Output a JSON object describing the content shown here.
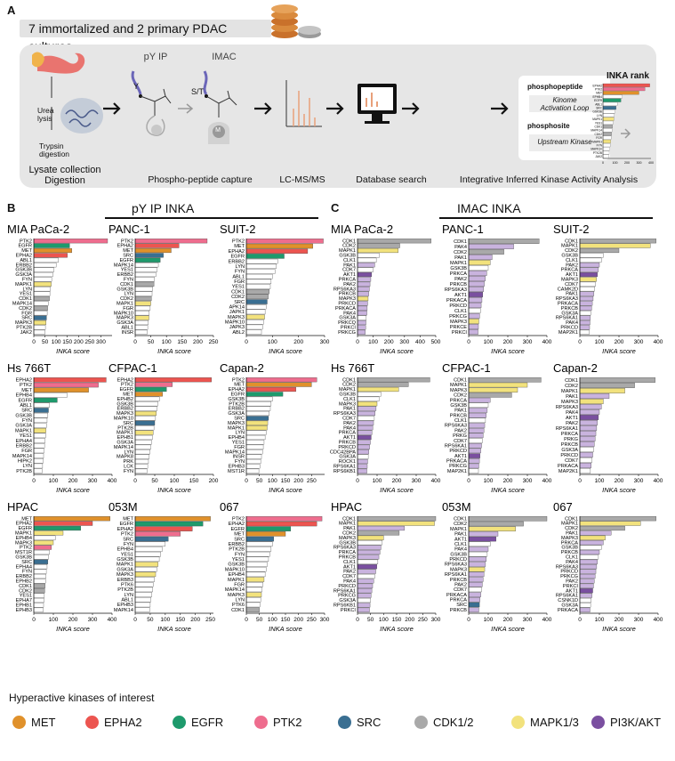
{
  "panel_letters": {
    "a": "A",
    "b": "B",
    "c": "C"
  },
  "workflow": {
    "banner": "7 immortalized and 2 primary PDAC cultures",
    "steps": [
      {
        "label": "Lysate collection\nDigestion"
      },
      {
        "label": "Phospho-peptide capture"
      },
      {
        "label": "LC-MS/MS"
      },
      {
        "label": "Database search"
      },
      {
        "label": "Integrative Inferred Kinase Activity Analysis"
      }
    ],
    "lysis_notes": {
      "urea": "Urea\nlysis",
      "trypsin": "Trypsin\ndigestion"
    },
    "capture": {
      "py_ip": "pY IP",
      "imac": "IMAC",
      "y": "Y",
      "st": "S/T",
      "m": "M"
    },
    "phospho_box": {
      "phosphopeptide": "phosphopeptide",
      "phosphopeptide_sub": "Kinome\nActivation Loop",
      "phosphosite": "phosphosite",
      "phosphosite_sub": "Upstream Kinase"
    },
    "inka_rank": {
      "title": "INKA rank",
      "kinases": [
        "EPHA2",
        "PTK2",
        "MET",
        "EPHB4",
        "EGFR",
        "ABL1",
        "SRC",
        "GSK3B",
        "LYN",
        "MAPK1",
        "YES1",
        "CDK1",
        "MAPK14",
        "CDK2",
        "FGR",
        "MAPK3",
        "FYN",
        "MAPK10",
        "PTK2B",
        "JAK2"
      ],
      "ticks": [
        "0",
        "100",
        "200",
        "300",
        "400"
      ]
    }
  },
  "groups": {
    "py_title": "pY IP INKA",
    "imac_title": "IMAC INKA"
  },
  "axis_label": "INKA score",
  "legend": {
    "title": "Hyperactive kinases of interest",
    "items": [
      {
        "name": "MET",
        "color": "#e0912b"
      },
      {
        "name": "EPHA2",
        "color": "#ec5550"
      },
      {
        "name": "EGFR",
        "color": "#1e9a6c"
      },
      {
        "name": "PTK2",
        "color": "#ee6d8e"
      },
      {
        "name": "SRC",
        "color": "#3a6f92"
      },
      {
        "name": "CDK1/2",
        "color": "#a9a9a9"
      },
      {
        "name": "MAPK1/3",
        "color": "#f2e27d"
      },
      {
        "name": "PI3K/AKT",
        "color": "#7a4fa0"
      }
    ]
  },
  "colors": {
    "MET": "#e0912b",
    "EPHA2": "#ec5550",
    "EGFR": "#1e9a6c",
    "PTK2": "#ee6d8e",
    "SRC": "#3a6f92",
    "CDK": "#a9a9a9",
    "MAPK": "#f2e27d",
    "PI3K": "#7a4fa0",
    "PI3K_light": "#c9b3de",
    "other": "#ffffff"
  },
  "chart_data": [
    {
      "type": "bar",
      "title": "MIA PaCa-2",
      "xlabel": "INKA score",
      "xlim": [
        0,
        350
      ],
      "ticks": [
        0,
        50,
        100,
        150,
        200,
        250,
        300
      ],
      "categories": [
        "PTK2",
        "EGFR",
        "MET",
        "EPHA2",
        "ABL1",
        "ERBB2",
        "GSK3B",
        "GSK3A",
        "FYN",
        "MAPK1",
        "LYN",
        "YES1",
        "CDK1",
        "MAPK14",
        "CDK2",
        "FGR",
        "SRC",
        "MAPK3",
        "PTK2B",
        "JAK2"
      ],
      "values": [
        330,
        160,
        170,
        150,
        110,
        100,
        90,
        85,
        80,
        78,
        74,
        72,
        70,
        65,
        62,
        60,
        57,
        55,
        52,
        50
      ]
    },
    {
      "type": "bar",
      "title": "PANC-1",
      "xlabel": "INKA score",
      "xlim": [
        0,
        250
      ],
      "ticks": [
        0,
        50,
        100,
        150,
        200,
        250
      ],
      "categories": [
        "PTK2",
        "EPHA2",
        "MET",
        "SRC",
        "EGFR",
        "MAPK14",
        "YES1",
        "ERBB2",
        "FYN",
        "CDK1",
        "GSK3B",
        "LYN",
        "CDK2",
        "MAPK1",
        "FGR",
        "MAPK10",
        "MAPK3",
        "GSK3A",
        "ABL1",
        "INSR"
      ],
      "values": [
        230,
        140,
        115,
        90,
        80,
        74,
        70,
        66,
        62,
        60,
        56,
        54,
        52,
        50,
        48,
        45,
        44,
        42,
        40,
        38
      ]
    },
    {
      "type": "bar",
      "title": "SUIT-2",
      "xlabel": "INKA score",
      "xlim": [
        0,
        300
      ],
      "ticks": [
        0,
        100,
        200,
        300
      ],
      "categories": [
        "PTK2",
        "MET",
        "EPHA2",
        "EGFR",
        "ERBB2",
        "LYN",
        "FYN",
        "ABL1",
        "FGR",
        "YES1",
        "CDK1",
        "CDK2",
        "SRC",
        "APK14",
        "JAPK1",
        "MAPK3",
        "MAPK10",
        "JAPK3",
        "ABL2"
      ],
      "values": [
        295,
        255,
        235,
        145,
        120,
        115,
        110,
        100,
        95,
        92,
        88,
        84,
        80,
        76,
        72,
        70,
        66,
        62,
        58
      ]
    },
    {
      "type": "bar",
      "title": "Hs 766T",
      "xlabel": "INKA score",
      "xlim": [
        0,
        400
      ],
      "ticks": [
        0,
        100,
        200,
        300,
        400
      ],
      "categories": [
        "EPHA2",
        "PTK2",
        "MET",
        "EPHB4",
        "EGFR",
        "ABL1",
        "SRC",
        "GSK3B",
        "FYN",
        "GSK3A",
        "MAPK1",
        "YES1",
        "EPHA4",
        "ERBB2",
        "FGR",
        "MAPK14",
        "HIPK2",
        "LYN",
        "PTK2B"
      ],
      "values": [
        370,
        330,
        280,
        170,
        120,
        80,
        75,
        72,
        68,
        65,
        62,
        60,
        58,
        55,
        52,
        50,
        48,
        45,
        42
      ]
    },
    {
      "type": "bar",
      "title": "CFPAC-1",
      "xlabel": "INKA score",
      "xlim": [
        0,
        200
      ],
      "ticks": [
        0,
        50,
        100,
        150,
        200
      ],
      "categories": [
        "EPHA2",
        "PTK2",
        "EGFR",
        "MET",
        "EPHB2",
        "GSK3B",
        "ERBB2",
        "MAPK3",
        "MAPK10",
        "SRC",
        "PTK2B",
        "MAPK1",
        "EPHB1",
        "GSK3A",
        "MAPK14",
        "LYN",
        "MAPK8",
        "PRK",
        "LCK",
        "FYN"
      ],
      "values": [
        195,
        95,
        80,
        70,
        62,
        58,
        56,
        54,
        52,
        50,
        48,
        46,
        44,
        42,
        40,
        38,
        36,
        34,
        32,
        30
      ]
    },
    {
      "type": "bar",
      "title": "Capan-2",
      "xlabel": "INKA score",
      "xlim": [
        0,
        300
      ],
      "ticks": [
        0,
        50,
        100,
        150,
        200,
        250
      ],
      "categories": [
        "PTK2",
        "MET",
        "EPHA2",
        "EGFR",
        "GSK3B",
        "PTK2B",
        "ERBB2",
        "GSK3A",
        "SRC",
        "MAPK3",
        "MAPK1",
        "LYN",
        "EPHB4",
        "YES1",
        "FGR",
        "MAPK14",
        "INSR",
        "FYN",
        "EPHB3",
        "MST1R"
      ],
      "values": [
        270,
        250,
        190,
        140,
        100,
        95,
        92,
        88,
        85,
        82,
        80,
        76,
        72,
        68,
        65,
        62,
        58,
        55,
        52,
        48
      ]
    },
    {
      "type": "bar",
      "title": "HPAC",
      "xlabel": "INKA score",
      "xlim": [
        0,
        400
      ],
      "ticks": [
        0,
        100,
        200,
        300,
        400
      ],
      "categories": [
        "MET",
        "EPHA2",
        "EGFR",
        "MAPK1",
        "EPHB4",
        "MAPK3",
        "PTK2",
        "MST1R",
        "GSK3B",
        "SRC",
        "EPHA4",
        "FYN",
        "ERBB2",
        "EPHB2",
        "CDK1",
        "CDK2",
        "YES1",
        "EPHA7",
        "EPHB1",
        "EPHB3"
      ],
      "values": [
        390,
        300,
        240,
        150,
        110,
        100,
        90,
        80,
        76,
        72,
        68,
        64,
        62,
        60,
        58,
        56,
        54,
        52,
        50,
        48
      ]
    },
    {
      "type": "bar",
      "title": "053M",
      "xlabel": "INKA score",
      "xlim": [
        0,
        260
      ],
      "ticks": [
        0,
        50,
        100,
        150,
        200,
        250
      ],
      "categories": [
        "MET",
        "EGFR",
        "EPHA2",
        "PTK2",
        "SRC",
        "FYN",
        "EPHB4",
        "YES1",
        "GSK3B",
        "MAPK1",
        "GSK3A",
        "MAPK3",
        "ERBB3",
        "PTK6",
        "PTK2B",
        "LYN",
        "ABL1",
        "EPHB3",
        "MAPK14"
      ],
      "values": [
        250,
        225,
        190,
        150,
        110,
        100,
        90,
        85,
        80,
        76,
        72,
        68,
        64,
        60,
        58,
        55,
        52,
        50,
        48
      ]
    },
    {
      "type": "bar",
      "title": "067",
      "xlabel": "INKA score",
      "xlim": [
        0,
        300
      ],
      "ticks": [
        0,
        50,
        100,
        150,
        200,
        250,
        300
      ],
      "categories": [
        "PTK2",
        "EPHA2",
        "EGFR",
        "MET",
        "SRC",
        "ERBB2",
        "PTK2B",
        "FYN",
        "YES1",
        "GSK3B",
        "MAPK10",
        "EPHB4",
        "MAPK1",
        "FGR",
        "MAPK14",
        "MAPK3",
        "LYN",
        "PTK6",
        "CDK1"
      ],
      "values": [
        290,
        270,
        170,
        150,
        105,
        100,
        95,
        90,
        85,
        80,
        76,
        72,
        68,
        64,
        60,
        58,
        55,
        52,
        50
      ]
    },
    {
      "type": "bar",
      "title": "MIA PaCa-2",
      "xlabel": "INKA score",
      "xlim": [
        0,
        500
      ],
      "ticks": [
        0,
        100,
        200,
        300,
        400,
        500
      ],
      "categories": [
        "CDK1",
        "CDK2",
        "MAPK1",
        "GSK3B",
        "CLK1",
        "PAK1",
        "CDK7",
        "AKT1",
        "PRKCA",
        "PAK2",
        "RPS6KA3",
        "PRKCB",
        "MAPK3",
        "PRKCD",
        "PRKACA",
        "PAK4",
        "GSK3A",
        "PRKCQ",
        "PRKCI",
        "PRKCG"
      ],
      "values": [
        470,
        270,
        260,
        140,
        120,
        110,
        100,
        90,
        85,
        80,
        76,
        72,
        68,
        65,
        62,
        60,
        56,
        54,
        52,
        50
      ]
    },
    {
      "type": "bar",
      "title": "PANC-1",
      "xlabel": "INKA score",
      "xlim": [
        0,
        400
      ],
      "ticks": [
        0,
        100,
        200,
        300,
        400
      ],
      "categories": [
        "CDK1",
        "PAK4",
        "CDK2",
        "PAK1",
        "MAPK1",
        "GSK3B",
        "PRKCA",
        "PAK2",
        "PRKCB",
        "RPS6KA3",
        "AKT1",
        "PRKACA",
        "PRKCD",
        "CLK1",
        "PRKCG",
        "MAPK3",
        "PRKCE",
        "PRKCI"
      ],
      "values": [
        360,
        230,
        180,
        120,
        110,
        100,
        92,
        85,
        80,
        76,
        72,
        68,
        64,
        60,
        56,
        52,
        50,
        48
      ]
    },
    {
      "type": "bar",
      "title": "SUIT-2",
      "xlabel": "INKA score",
      "xlim": [
        0,
        400
      ],
      "ticks": [
        0,
        100,
        200,
        300,
        400
      ],
      "categories": [
        "CDK1",
        "MAPK1",
        "CDK2",
        "GSK3B",
        "CLK1",
        "PAK2",
        "PRKCA",
        "AKT1",
        "MAPK3",
        "CDK7",
        "CAMK2D",
        "PAK1",
        "RPS6KA3",
        "PRKACA",
        "PRKCB",
        "GSK3A",
        "RPS6KA1",
        "PAK4",
        "PRKCD",
        "MAP2K1"
      ],
      "values": [
        390,
        360,
        200,
        120,
        110,
        100,
        95,
        90,
        85,
        80,
        76,
        72,
        68,
        64,
        60,
        56,
        54,
        52,
        50,
        48
      ]
    },
    {
      "type": "bar",
      "title": "Hs 766T",
      "xlabel": "INKA score",
      "xlim": [
        0,
        400
      ],
      "ticks": [
        0,
        100,
        200,
        300,
        400
      ],
      "categories": [
        "CDK1",
        "CDK2",
        "MAPK1",
        "GSK3B",
        "CLK1",
        "MAPK3",
        "PAK1",
        "RPS6KA3",
        "CDK7",
        "PAK2",
        "PAK4",
        "PRKCA",
        "AKT1",
        "PRKCB",
        "PRKCD",
        "CDC42BPA",
        "GSK3A",
        "ROCK1",
        "RPS6KA1",
        "RPS6KB1"
      ],
      "values": [
        370,
        260,
        210,
        120,
        110,
        100,
        95,
        90,
        86,
        82,
        78,
        74,
        70,
        66,
        62,
        58,
        55,
        52,
        50,
        48
      ]
    },
    {
      "type": "bar",
      "title": "CFPAC-1",
      "xlabel": "INKA score",
      "xlim": [
        0,
        400
      ],
      "ticks": [
        0,
        100,
        200,
        300,
        400
      ],
      "categories": [
        "CDK1",
        "MAPK1",
        "MAPK3",
        "CDK2",
        "PRKCA",
        "GSK3B",
        "PAK1",
        "PRKCB",
        "CLK1",
        "RPS6KA3",
        "PAK2",
        "PRKG",
        "CDK7",
        "RPS6KA1",
        "PRKCD",
        "AKT1",
        "PRKACA",
        "PRKCG",
        "MAP2K1"
      ],
      "values": [
        370,
        300,
        250,
        220,
        110,
        100,
        95,
        90,
        86,
        82,
        78,
        74,
        70,
        66,
        62,
        58,
        55,
        52,
        50
      ]
    },
    {
      "type": "bar",
      "title": "Capan-2",
      "xlabel": "INKA score",
      "xlim": [
        0,
        400
      ],
      "ticks": [
        0,
        100,
        200,
        300,
        400
      ],
      "categories": [
        "CDK1",
        "CDK2",
        "MAPK1",
        "PAK1",
        "MAPK3",
        "RPS6KA3",
        "PAK4",
        "AKT1",
        "PAK2",
        "RPS6KA1",
        "PRKCA",
        "PRKG",
        "PRKCB",
        "GSK3A",
        "PRKCD",
        "CDK7",
        "PRKACA",
        "MAP2K1"
      ],
      "values": [
        385,
        280,
        230,
        150,
        120,
        110,
        100,
        95,
        90,
        86,
        82,
        78,
        74,
        70,
        66,
        62,
        58,
        54
      ]
    },
    {
      "type": "bar",
      "title": "HPAC",
      "xlabel": "INKA score",
      "xlim": [
        0,
        300
      ],
      "ticks": [
        0,
        50,
        100,
        150,
        200,
        250,
        300
      ],
      "categories": [
        "CDK1",
        "MAPK1",
        "PAK1",
        "CDK2",
        "MAPK3",
        "GSK3B",
        "RPS6KA3",
        "PRKCA",
        "PRKCB",
        "CLK1",
        "AKT1",
        "PAK2",
        "CDK7",
        "PAK4",
        "PRKCD",
        "RPS6KA1",
        "PRKCG",
        "GSK3A",
        "RPS6KB1",
        "PRKCI"
      ],
      "values": [
        300,
        295,
        180,
        160,
        100,
        95,
        90,
        86,
        82,
        78,
        74,
        70,
        66,
        62,
        58,
        55,
        52,
        50,
        48,
        46
      ]
    },
    {
      "type": "bar",
      "title": "053M",
      "xlabel": "INKA score",
      "xlim": [
        0,
        400
      ],
      "ticks": [
        0,
        100,
        200,
        300,
        400
      ],
      "categories": [
        "CDK1",
        "CDK2",
        "MAPK1",
        "PAK1",
        "AKT1",
        "CLK1",
        "PAK4",
        "GSK3B",
        "PRKCD",
        "RPS6KA3",
        "MAPK3",
        "RPS6KA1",
        "PRKCB",
        "PAK2",
        "CDK7",
        "PRKACA",
        "PRKCA",
        "SRC",
        "PRKCB"
      ],
      "values": [
        400,
        280,
        240,
        150,
        140,
        110,
        100,
        95,
        90,
        86,
        82,
        78,
        74,
        70,
        66,
        62,
        58,
        55,
        52
      ]
    },
    {
      "type": "bar",
      "title": "067",
      "xlabel": "INKA score",
      "xlim": [
        0,
        400
      ],
      "ticks": [
        0,
        100,
        200,
        300,
        400
      ],
      "categories": [
        "CDK1",
        "MAPK1",
        "CDK2",
        "PAK1",
        "MAPK3",
        "PRKCA",
        "GSK3B",
        "PRKCB",
        "CLK1",
        "PAK4",
        "RPS6KA3",
        "PRKCD",
        "PRKCG",
        "PAK2",
        "PRKCI",
        "AKT1",
        "RPS6KA1",
        "CSNK1D",
        "GSK3A",
        "PRKACA"
      ],
      "values": [
        390,
        310,
        230,
        160,
        130,
        120,
        110,
        100,
        95,
        90,
        86,
        82,
        78,
        74,
        70,
        66,
        62,
        58,
        55,
        52
      ]
    }
  ]
}
